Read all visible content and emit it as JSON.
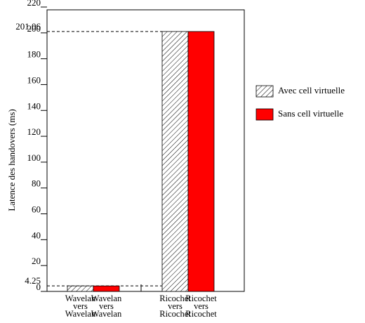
{
  "chart_data": {
    "type": "bar",
    "y_label": "Latence des handovers (ms)",
    "categories": [
      "Wavelan vers Wavelan",
      "Ricochet vers Ricochet"
    ],
    "series": [
      {
        "name": "Avec cell virtuelle",
        "color": "#ffffff",
        "pattern": "hatch",
        "values": [
          4.25,
          201.06
        ]
      },
      {
        "name": "Sans cell virtuelle",
        "color": "#ff0000",
        "values": [
          4.25,
          201.06
        ]
      }
    ],
    "reference_values": [
      4.25,
      201.06
    ],
    "ylim": [
      0,
      220
    ],
    "yticks": [
      0,
      20,
      40,
      60,
      80,
      100,
      120,
      140,
      160,
      180,
      200,
      220
    ]
  }
}
